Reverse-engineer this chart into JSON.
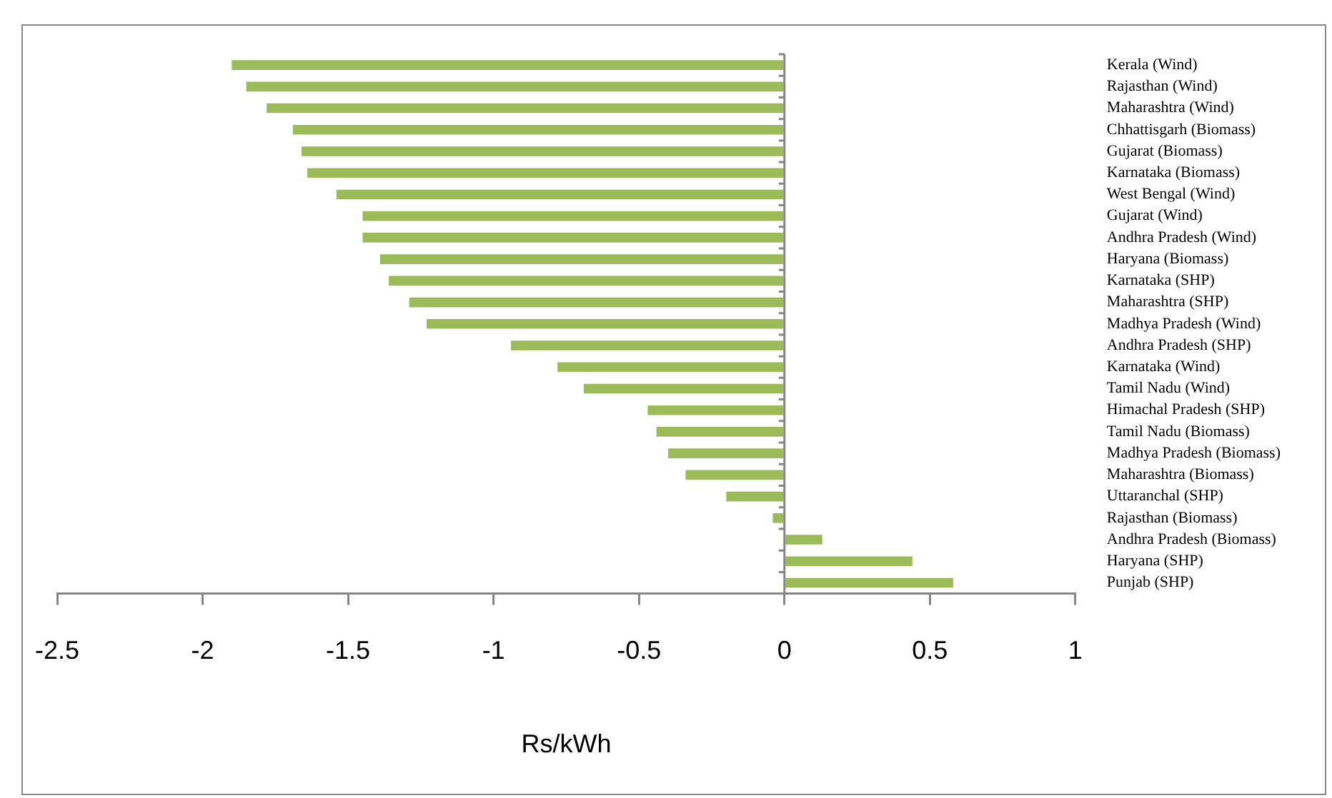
{
  "chart_data": {
    "type": "bar",
    "orientation": "horizontal",
    "xlabel": "Rs/kWh",
    "categories": [
      "Kerala (Wind)",
      "Rajasthan (Wind)",
      "Maharashtra (Wind)",
      "Chhattisgarh (Biomass)",
      "Gujarat (Biomass)",
      "Karnataka (Biomass)",
      "West Bengal (Wind)",
      "Gujarat (Wind)",
      "Andhra Pradesh (Wind)",
      "Haryana (Biomass)",
      "Karnataka (SHP)",
      "Maharashtra (SHP)",
      "Madhya Pradesh (Wind)",
      "Andhra Pradesh (SHP)",
      "Karnataka (Wind)",
      "Tamil Nadu (Wind)",
      "Himachal Pradesh (SHP)",
      "Tamil Nadu (Biomass)",
      "Madhya Pradesh (Biomass)",
      "Maharashtra (Biomass)",
      "Uttaranchal (SHP)",
      "Rajasthan (Biomass)",
      "Andhra Pradesh (Biomass)",
      "Haryana (SHP)",
      "Punjab (SHP)"
    ],
    "values": [
      -1.9,
      -1.85,
      -1.78,
      -1.69,
      -1.66,
      -1.64,
      -1.54,
      -1.45,
      -1.45,
      -1.39,
      -1.36,
      -1.29,
      -1.23,
      -0.94,
      -0.78,
      -0.69,
      -0.47,
      -0.44,
      -0.4,
      -0.34,
      -0.2,
      -0.04,
      0.13,
      0.44,
      0.58
    ],
    "color": "#9bbb59",
    "xlim": [
      -2.5,
      1
    ],
    "xticks": [
      -2.5,
      -2,
      -1.5,
      -1,
      -0.5,
      0,
      0.5,
      1
    ],
    "legend": false
  }
}
